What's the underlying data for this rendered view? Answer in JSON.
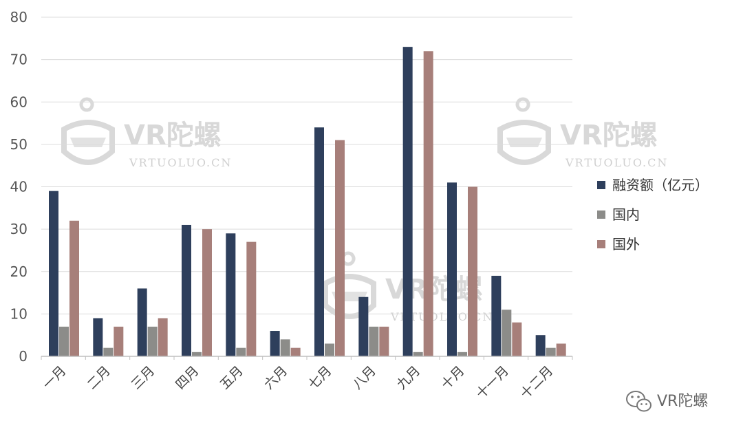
{
  "chart_data": {
    "type": "bar",
    "title": "",
    "xlabel": "",
    "ylabel": "",
    "ylim": [
      0,
      80
    ],
    "yticks": [
      0,
      10,
      20,
      30,
      40,
      50,
      60,
      70,
      80
    ],
    "grid": true,
    "legend_position": "right",
    "categories": [
      "一月",
      "二月",
      "三月",
      "四月",
      "五月",
      "六月",
      "七月",
      "八月",
      "九月",
      "十月",
      "十一月",
      "十二月"
    ],
    "series": [
      {
        "name": "融资额（亿元）",
        "color": "#2e3f5c",
        "values": [
          39,
          9,
          16,
          31,
          29,
          6,
          54,
          14,
          73,
          41,
          19,
          5
        ]
      },
      {
        "name": "国内",
        "color": "#8c8c89",
        "values": [
          7,
          2,
          7,
          1,
          2,
          4,
          3,
          7,
          1,
          1,
          11,
          2
        ]
      },
      {
        "name": "国外",
        "color": "#a77f7a",
        "values": [
          32,
          7,
          9,
          30,
          27,
          2,
          51,
          7,
          72,
          40,
          8,
          3
        ]
      }
    ]
  },
  "watermark": {
    "brand": "VR陀螺",
    "site": "VRTUOLUO.CN",
    "icon": "vr-headset-logo-icon"
  },
  "footer": {
    "icon": "wechat-icon",
    "label": "VR陀螺"
  }
}
